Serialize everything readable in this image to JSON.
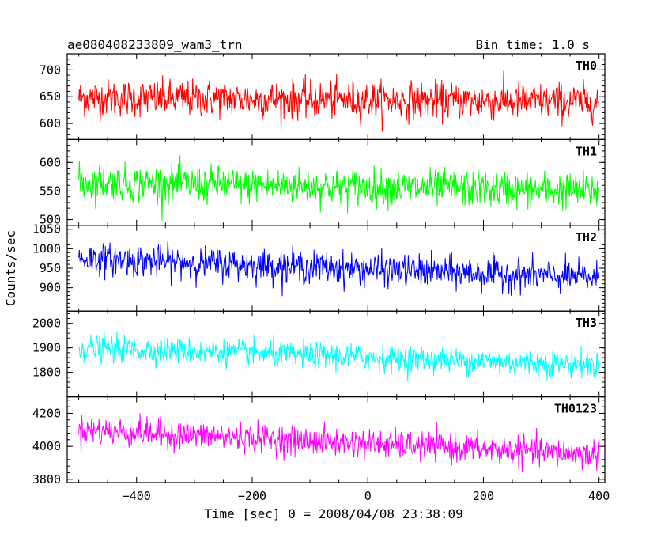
{
  "chart_data": {
    "type": "line",
    "title_left": "ae080408233809_wam3_trn",
    "title_right": "Bin time: 1.0 s",
    "xlabel": "Time [sec] 0 = 2008/04/08 23:38:09",
    "ylabel": "Counts/sec",
    "xlim": [
      -520,
      410
    ],
    "x_ticks": [
      -400,
      -200,
      0,
      200,
      400
    ],
    "x_tick_labels": [
      "−400",
      "−200",
      "0",
      "200",
      "400"
    ],
    "x_range": [
      -500,
      400
    ],
    "bin_time": 1.0,
    "grid": false,
    "panels": [
      {
        "name": "TH0",
        "color": "#ff0000",
        "ylim": [
          570,
          730
        ],
        "y_ticks": [
          600,
          650,
          700
        ],
        "y_tick_labels": [
          "600",
          "650",
          "700"
        ],
        "mean_start": 648,
        "mean_end": 640,
        "amplitude": 38
      },
      {
        "name": "TH1",
        "color": "#00ff00",
        "ylim": [
          490,
          640
        ],
        "y_ticks": [
          500,
          550,
          600
        ],
        "y_tick_labels": [
          "500",
          "550",
          "600"
        ],
        "mean_start": 565,
        "mean_end": 550,
        "amplitude": 35
      },
      {
        "name": "TH2",
        "color": "#0000ff",
        "ylim": [
          840,
          1060
        ],
        "y_ticks": [
          900,
          950,
          1000,
          1050
        ],
        "y_tick_labels": [
          "900",
          "950",
          "1000",
          "1050"
        ],
        "mean_start": 975,
        "mean_end": 925,
        "amplitude": 45
      },
      {
        "name": "TH3",
        "color": "#00ffff",
        "ylim": [
          1700,
          2050
        ],
        "y_ticks": [
          1800,
          1900,
          2000
        ],
        "y_tick_labels": [
          "1800",
          "1900",
          "2000"
        ],
        "mean_start": 1900,
        "mean_end": 1830,
        "amplitude": 60
      },
      {
        "name": "TH0123",
        "color": "#ff00ff",
        "ylim": [
          3780,
          4300
        ],
        "y_ticks": [
          3800,
          4000,
          4200
        ],
        "y_tick_labels": [
          "3800",
          "4000",
          "4200"
        ],
        "mean_start": 4100,
        "mean_end": 3950,
        "amplitude": 95
      }
    ]
  }
}
